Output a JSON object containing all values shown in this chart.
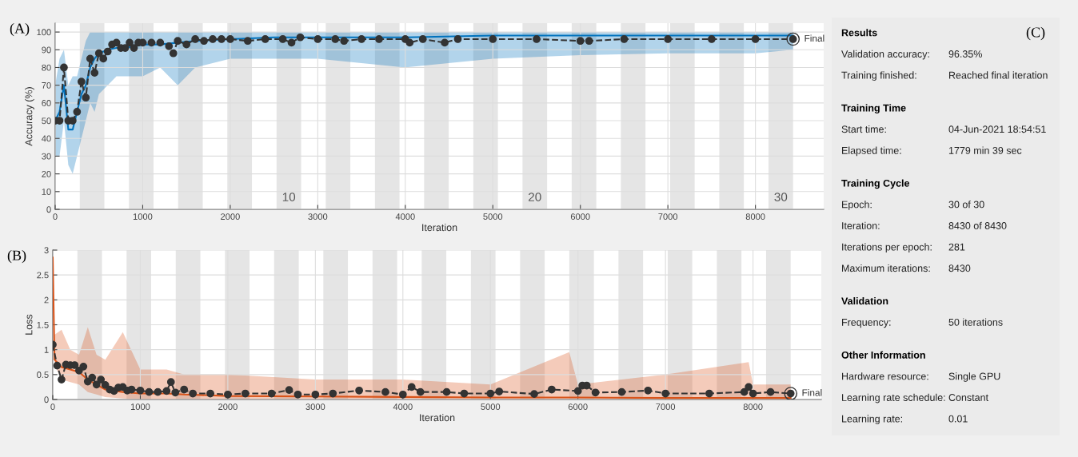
{
  "chart_data": [
    {
      "type": "line",
      "xlabel": "Iteration",
      "ylabel": "Accuracy (%)",
      "xlim": [
        0,
        8780
      ],
      "ylim": [
        0,
        105
      ],
      "xticks": [
        0,
        1000,
        2000,
        3000,
        4000,
        5000,
        6000,
        7000,
        8000
      ],
      "yticks": [
        0,
        10,
        20,
        30,
        40,
        50,
        60,
        70,
        80,
        90,
        100
      ],
      "grid": true,
      "series": [
        {
          "color": "#0072bd",
          "x": [
            0,
            50,
            100,
            150,
            200,
            250,
            300,
            350,
            400,
            450,
            500,
            600,
            700,
            800,
            1000,
            1200,
            1400,
            1600,
            2000,
            2500,
            3000,
            4000,
            5000,
            6000,
            7000,
            8000,
            8430
          ],
          "values": [
            50,
            55,
            70,
            45,
            45,
            55,
            65,
            70,
            80,
            85,
            88,
            90,
            91,
            91,
            93,
            93,
            94,
            95,
            96,
            97,
            97,
            97,
            98,
            98,
            98,
            98,
            98
          ],
          "lower": [
            30,
            30,
            50,
            25,
            20,
            30,
            40,
            50,
            60,
            55,
            65,
            70,
            75,
            75,
            75,
            80,
            70,
            80,
            85,
            85,
            85,
            80,
            85,
            87,
            88,
            88,
            90
          ],
          "upper": [
            70,
            85,
            90,
            70,
            75,
            75,
            85,
            95,
            100,
            100,
            100,
            100,
            100,
            100,
            100,
            100,
            100,
            100,
            100,
            100,
            100,
            100,
            100,
            100,
            100,
            100,
            100
          ]
        },
        {
          "color": "#333333",
          "marker": "circle",
          "line_style": "dashed",
          "x": [
            0,
            50,
            100,
            150,
            200,
            250,
            300,
            350,
            400,
            450,
            500,
            550,
            600,
            650,
            700,
            750,
            800,
            850,
            900,
            950,
            1000,
            1100,
            1200,
            1300,
            1350,
            1400,
            1500,
            1600,
            1700,
            1800,
            1900,
            2000,
            2200,
            2400,
            2600,
            2700,
            2800,
            3000,
            3200,
            3300,
            3500,
            3700,
            4000,
            4050,
            4200,
            4450,
            4600,
            5000,
            5500,
            6000,
            6100,
            6500,
            7000,
            7500,
            8000,
            8430
          ],
          "values": [
            50,
            50,
            80,
            50,
            50,
            55,
            72,
            63,
            85,
            77,
            88,
            85,
            89,
            93,
            94,
            91,
            91,
            94,
            91,
            94,
            94,
            94,
            94,
            92,
            88,
            95,
            93,
            96,
            95,
            96,
            96,
            96,
            95,
            96,
            96,
            94,
            97,
            96,
            96,
            95,
            96,
            96,
            96,
            94,
            96,
            94,
            96,
            96,
            96,
            95,
            95,
            96,
            96,
            96,
            96,
            96
          ]
        }
      ],
      "bands": [
        {
          "axis": "x",
          "from": 281,
          "to": 562,
          "color": "#e5e5e5"
        },
        {
          "axis": "x",
          "from": 843,
          "to": 1124,
          "color": "#e5e5e5"
        },
        {
          "axis": "x",
          "from": 1405,
          "to": 1686,
          "color": "#e5e5e5"
        },
        {
          "axis": "x",
          "from": 1967,
          "to": 2248,
          "color": "#e5e5e5"
        },
        {
          "axis": "x",
          "from": 2529,
          "to": 2810,
          "color": "#e5e5e5",
          "label": "10"
        },
        {
          "axis": "x",
          "from": 3091,
          "to": 3372,
          "color": "#e5e5e5"
        },
        {
          "axis": "x",
          "from": 3653,
          "to": 3934,
          "color": "#e5e5e5"
        },
        {
          "axis": "x",
          "from": 4215,
          "to": 4496,
          "color": "#e5e5e5"
        },
        {
          "axis": "x",
          "from": 4777,
          "to": 5058,
          "color": "#e5e5e5"
        },
        {
          "axis": "x",
          "from": 5339,
          "to": 5620,
          "color": "#e5e5e5",
          "label": "20"
        },
        {
          "axis": "x",
          "from": 5901,
          "to": 6182,
          "color": "#e5e5e5"
        },
        {
          "axis": "x",
          "from": 6463,
          "to": 6744,
          "color": "#e5e5e5"
        },
        {
          "axis": "x",
          "from": 7025,
          "to": 7306,
          "color": "#e5e5e5"
        },
        {
          "axis": "x",
          "from": 7587,
          "to": 7868,
          "color": "#e5e5e5"
        },
        {
          "axis": "x",
          "from": 8149,
          "to": 8430,
          "color": "#e5e5e5",
          "label": "30"
        }
      ],
      "annotations": [
        "(A)",
        {
          "text": "Final",
          "x": 8430,
          "y": 96
        }
      ]
    },
    {
      "type": "line",
      "xlabel": "Iteration",
      "ylabel": "Loss",
      "xlim": [
        0,
        8780
      ],
      "ylim": [
        0,
        3
      ],
      "xticks": [
        0,
        1000,
        2000,
        3000,
        4000,
        5000,
        6000,
        7000,
        8000
      ],
      "yticks": [
        0,
        0.5,
        1,
        1.5,
        2,
        2.5,
        3
      ],
      "grid": true,
      "series": [
        {
          "color": "#d95319",
          "x": [
            0,
            20,
            100,
            200,
            300,
            400,
            500,
            600,
            800,
            1000,
            1300,
            1500,
            2000,
            3000,
            4000,
            5000,
            5900,
            6000,
            7000,
            7950,
            8000,
            8430
          ],
          "values": [
            2.85,
            0.8,
            0.65,
            0.6,
            0.55,
            0.4,
            0.3,
            0.2,
            0.15,
            0.12,
            0.12,
            0.1,
            0.07,
            0.06,
            0.05,
            0.04,
            0.04,
            0.04,
            0.03,
            0.03,
            0.03,
            0.03
          ],
          "lower": [
            2.85,
            0.7,
            0.4,
            0.35,
            0.3,
            0.15,
            0.1,
            0.05,
            0.02,
            0,
            0,
            0,
            0,
            0,
            0,
            0,
            0,
            0,
            0,
            0,
            0,
            0
          ],
          "upper": [
            2.85,
            1.3,
            1.4,
            1.0,
            0.9,
            1.45,
            0.9,
            0.8,
            1.35,
            0.6,
            0.6,
            0.5,
            0.5,
            0.4,
            0.4,
            0.3,
            0.95,
            0.3,
            0.5,
            0.75,
            0.3,
            0.3
          ]
        },
        {
          "color": "#333333",
          "marker": "circle",
          "line_style": "dashed",
          "x": [
            0,
            50,
            100,
            150,
            200,
            250,
            300,
            350,
            400,
            450,
            500,
            550,
            600,
            650,
            700,
            750,
            800,
            850,
            900,
            1000,
            1100,
            1200,
            1300,
            1350,
            1400,
            1500,
            1600,
            1800,
            2000,
            2200,
            2500,
            2700,
            2800,
            3000,
            3200,
            3500,
            3800,
            4000,
            4100,
            4200,
            4500,
            4700,
            5000,
            5100,
            5500,
            5700,
            6000,
            6050,
            6100,
            6200,
            6500,
            6800,
            7000,
            7500,
            7900,
            7950,
            8000,
            8200,
            8430
          ],
          "values": [
            1.1,
            0.68,
            0.4,
            0.7,
            0.69,
            0.69,
            0.58,
            0.66,
            0.36,
            0.44,
            0.3,
            0.4,
            0.29,
            0.2,
            0.17,
            0.24,
            0.25,
            0.18,
            0.2,
            0.18,
            0.15,
            0.15,
            0.17,
            0.35,
            0.14,
            0.2,
            0.12,
            0.12,
            0.1,
            0.12,
            0.12,
            0.19,
            0.1,
            0.1,
            0.12,
            0.18,
            0.15,
            0.1,
            0.25,
            0.15,
            0.15,
            0.12,
            0.12,
            0.16,
            0.11,
            0.2,
            0.17,
            0.28,
            0.28,
            0.14,
            0.15,
            0.18,
            0.12,
            0.12,
            0.15,
            0.25,
            0.12,
            0.15,
            0.12
          ]
        }
      ],
      "bands": [
        {
          "axis": "x",
          "from": 281,
          "to": 562,
          "color": "#e5e5e5"
        },
        {
          "axis": "x",
          "from": 843,
          "to": 1124,
          "color": "#e5e5e5"
        },
        {
          "axis": "x",
          "from": 1405,
          "to": 1686,
          "color": "#e5e5e5"
        },
        {
          "axis": "x",
          "from": 1967,
          "to": 2248,
          "color": "#e5e5e5"
        },
        {
          "axis": "x",
          "from": 2529,
          "to": 2810,
          "color": "#e5e5e5"
        },
        {
          "axis": "x",
          "from": 3091,
          "to": 3372,
          "color": "#e5e5e5"
        },
        {
          "axis": "x",
          "from": 3653,
          "to": 3934,
          "color": "#e5e5e5"
        },
        {
          "axis": "x",
          "from": 4215,
          "to": 4496,
          "color": "#e5e5e5"
        },
        {
          "axis": "x",
          "from": 4777,
          "to": 5058,
          "color": "#e5e5e5"
        },
        {
          "axis": "x",
          "from": 5339,
          "to": 5620,
          "color": "#e5e5e5"
        },
        {
          "axis": "x",
          "from": 5901,
          "to": 6182,
          "color": "#e5e5e5"
        },
        {
          "axis": "x",
          "from": 6463,
          "to": 6744,
          "color": "#e5e5e5"
        },
        {
          "axis": "x",
          "from": 7025,
          "to": 7306,
          "color": "#e5e5e5"
        },
        {
          "axis": "x",
          "from": 7587,
          "to": 7868,
          "color": "#e5e5e5"
        },
        {
          "axis": "x",
          "from": 8149,
          "to": 8430,
          "color": "#e5e5e5"
        }
      ],
      "annotations": [
        "(B)",
        {
          "text": "Final",
          "x": 8430,
          "y": 0.12
        }
      ]
    },
    {
      "type": "other",
      "title": "Results",
      "annotations": [
        "(C)",
        "Validation accuracy:",
        "96.35%",
        "Training finished:",
        "Reached final iteration"
      ]
    },
    {
      "type": "other",
      "title": "Training Time",
      "annotations": [
        "Start time:",
        "04-Jun-2021 18:54:51",
        "Elapsed time:",
        "1779 min 39 sec"
      ]
    },
    {
      "type": "other",
      "title": "Training Cycle",
      "annotations": [
        "Epoch:",
        "30 of 30",
        "Iteration:",
        "8430 of 8430",
        "Iterations per epoch:",
        "281",
        "Maximum iterations:",
        "8430"
      ]
    },
    {
      "type": "other",
      "title": "Validation",
      "annotations": [
        "Frequency:",
        "50 iterations"
      ]
    },
    {
      "type": "other",
      "title": "Other Information",
      "annotations": [
        "Hardware resource:",
        "Single GPU",
        "Learning rate schedule:",
        "Constant",
        "Learning rate:",
        "0.01"
      ]
    }
  ]
}
